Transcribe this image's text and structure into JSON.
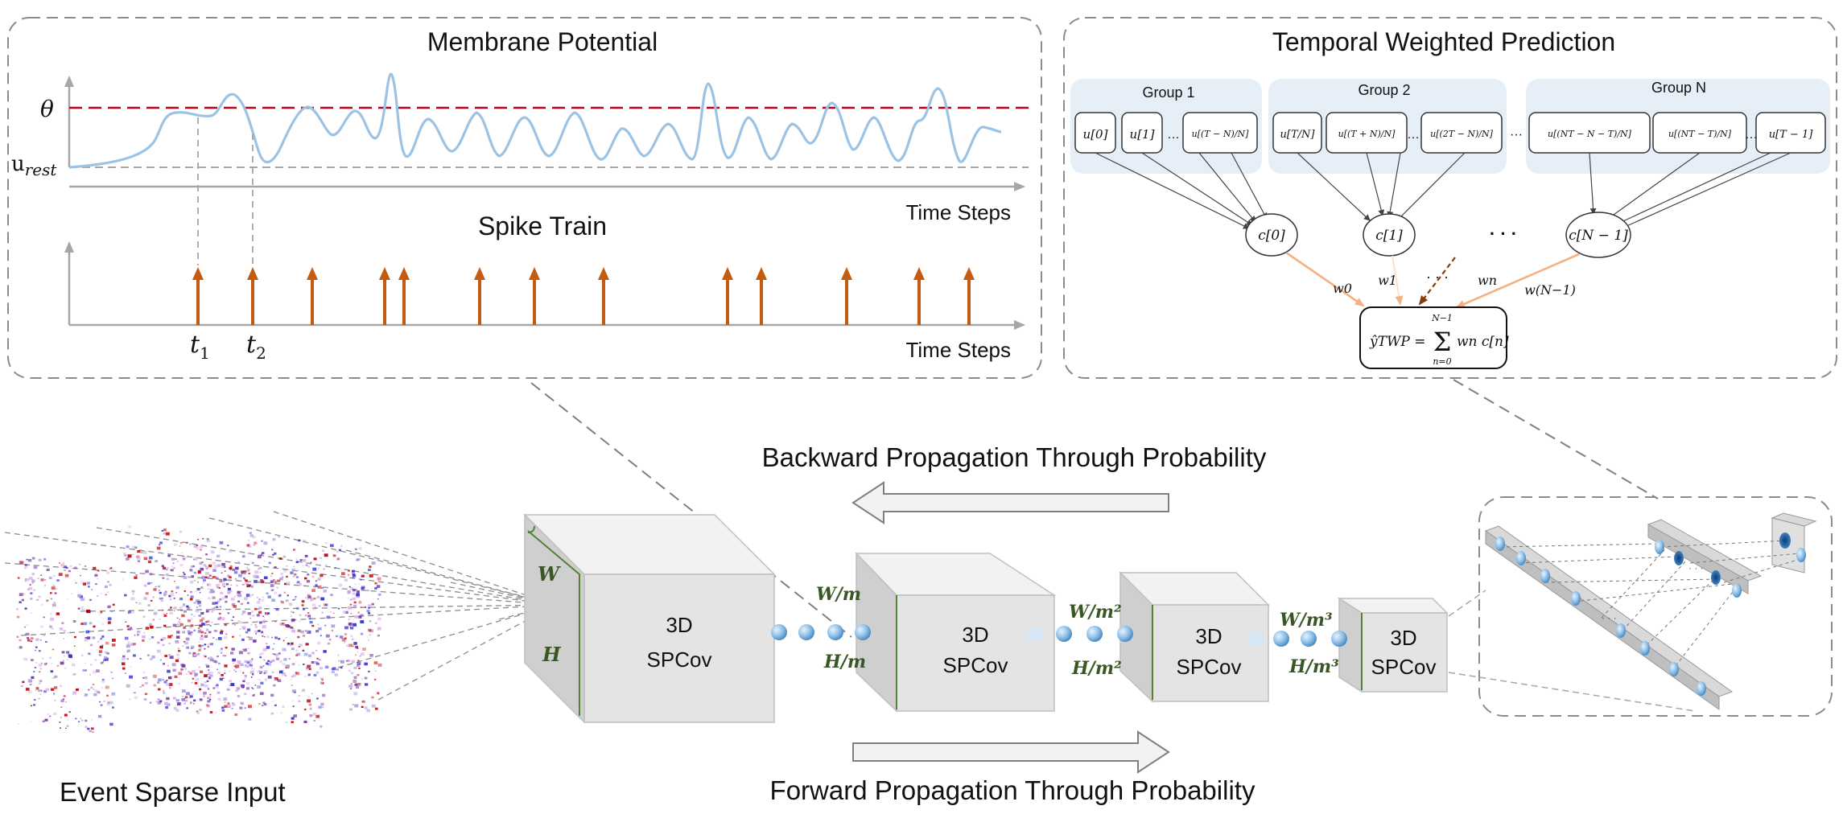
{
  "membrane_panel": {
    "title": "Membrane Potential",
    "threshold_label": "θ",
    "rest_label_main": "u",
    "rest_label_sub": "rest",
    "time_axis_label": "Time Steps",
    "spike_title": "Spike Train",
    "spike_axis_label": "Time Steps",
    "t1_main": "t",
    "t1_sub": "1",
    "t2_main": "t",
    "t2_sub": "2"
  },
  "twp_panel": {
    "title": "Temporal Weighted Prediction",
    "groups": [
      {
        "label": "Group 1",
        "cells": [
          "u[0]",
          "u[1]",
          "u[(T − N)/N]"
        ]
      },
      {
        "label": "Group 2",
        "cells": [
          "u[T/N]",
          "u[(T + N)/N]",
          "u[(2T − N)/N]"
        ]
      },
      {
        "label": "Group N",
        "cells": [
          "u[(NT − N − T)/N]",
          "u[(NT − T)/N]",
          "u[T − 1]"
        ]
      }
    ],
    "between_dots": "…",
    "group_gap_dots": "···",
    "nodes": [
      "c[0]",
      "c[1]",
      "c[N − 1]"
    ],
    "node_gap_dots": "·  ·  ·",
    "weights": [
      "w0",
      "w1",
      "wn",
      "w(N−1)"
    ],
    "weight_gap_dots": "· · ·",
    "output_formula_lhs": "ŷTWP =",
    "output_formula_sum_top": "N−1",
    "output_formula_sum": "Σ",
    "output_formula_sum_bottom": "n=0",
    "output_formula_term": "wn c[n]"
  },
  "network": {
    "backward_label": "Backward Propagation Through Probability",
    "forward_label": "Forward Propagation Through Probability",
    "input_label": "Event Sparse Input",
    "blocks": [
      {
        "line1": "3D",
        "line2": "SPCov",
        "width_label": "W",
        "height_label": "H"
      },
      {
        "line1": "3D",
        "line2": "SPCov",
        "width_label": "W/m",
        "height_label": "H/m"
      },
      {
        "line1": "3D",
        "line2": "SPCov",
        "width_label": "W/m²",
        "height_label": "H/m²"
      },
      {
        "line1": "3D",
        "line2": "SPCov",
        "width_label": "W/m³",
        "height_label": "H/m³"
      }
    ]
  },
  "colors": {
    "panel_border": "#8c8c8c",
    "threshold_line": "#c0001a",
    "potential_curve": "#9cc3e4",
    "spike_arrow": "#c55a11",
    "group_bg": "#e6eff8",
    "weight_arrow": "#f4b183",
    "label_green": "#385723",
    "cube_face": "#e4e4e4",
    "neuron": "#5b9bd5"
  }
}
